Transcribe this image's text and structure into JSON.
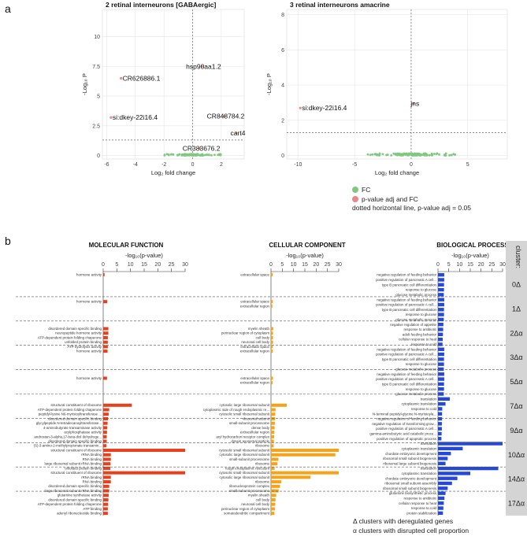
{
  "panel_a": {
    "letter": "a",
    "legend": {
      "fc": {
        "label": "FC",
        "color": "#7fc97f"
      },
      "pval": {
        "label": "p-value adj and FC",
        "color": "#e8888a"
      },
      "dotted": "dotted horizontal line, p-value adj = 0.05"
    },
    "xlabel": "Log₂ fold change",
    "ylabel": "-Log₁₀ P"
  },
  "panel_b": {
    "letter": "b",
    "footnote1": "Δ clusters with deregulated genes",
    "footnote2": "α clusters with disrupted cell proportion",
    "cluster_header": "cluster:",
    "axis_label": "-log₁₀(p-value)"
  },
  "chart_data": [
    {
      "type": "scatter",
      "title": "2 retinal interneurons [GABAergic]",
      "xlabel": "Log₂ fold change",
      "ylabel": "-Log₁₀ P",
      "xlim": [
        -6.3,
        3.6
      ],
      "ylim": [
        -0.3,
        12.3
      ],
      "xticks": [
        -6,
        -4,
        -2,
        0,
        2
      ],
      "yticks": [
        0,
        2.5,
        5,
        7.5,
        10
      ],
      "threshold": 1.3,
      "labeled": [
        {
          "label": "CR626886.1",
          "x": -5.0,
          "y": 6.5
        },
        {
          "label": "hsp90aa1.2",
          "x": 0.65,
          "y": 7.5
        },
        {
          "label": "si:dkey-22i16.4",
          "x": -5.7,
          "y": 3.2
        },
        {
          "label": "CR848784.2",
          "x": 2.2,
          "y": 3.3
        },
        {
          "label": "cart4",
          "x": 3.05,
          "y": 1.9
        },
        {
          "label": "CR383676.2",
          "x": 0.5,
          "y": 0.6
        }
      ]
    },
    {
      "type": "scatter",
      "title": "3 retinal interneurons amacrine",
      "xlabel": "Log₂ fold change",
      "ylabel": "-Log₁₀ P",
      "xlim": [
        -11,
        8.5
      ],
      "ylim": [
        -0.2,
        8.3
      ],
      "xticks": [
        -10,
        -5,
        0,
        5
      ],
      "yticks": [
        0,
        2,
        4,
        6,
        8
      ],
      "threshold": 1.3,
      "labeled": [
        {
          "label": "jns",
          "x": 0.2,
          "y": 2.95
        },
        {
          "label": "si:dkey-22i16.4",
          "x": -9.8,
          "y": 2.7
        }
      ]
    },
    {
      "type": "bar",
      "title": "MOLECULAR FUNCTION",
      "color": "#e8401c",
      "xlabel": "-log₁₀(p-value)",
      "xlim": [
        0,
        30
      ],
      "xticks": [
        0,
        5,
        10,
        15,
        20,
        25,
        30
      ],
      "categories": [
        "hormone activity",
        "",
        "",
        "",
        "",
        "",
        "hormone activity",
        "",
        "",
        "",
        "",
        "",
        "disordered domain specific binding",
        "neuropeptide hormone activity",
        "ATP-dependent protein folding chaperone",
        "unfolded protein binding",
        "ATP hydrolysis activity",
        "hormone activity",
        "",
        "",
        "",
        "",
        "",
        "hormone activity",
        "",
        "",
        "",
        "",
        "",
        "structural constituent of ribosome",
        "ATP-dependent protein folding chaperone",
        "peptidyl-lysine N6-myristoyltransferase ...",
        "disordered domain specific binding",
        "glycylpeptide N-tetradecanoyltransferase...",
        "4-aminobutyrate transaminase activity",
        "acylphosphatase activity",
        "androstan-3-alpha,17-beta-diol dehydroge...",
        "disordered domain specific binding",
        "(S)-3-amino-2-methylpropionate transamin...",
        "structural constituent of ribosome",
        "rRNA binding",
        "RNA binding",
        "large ribosomal subunit rRNA binding",
        "unfolded protein binding",
        "structural constituent of ribosome",
        "rRNA binding",
        "RNA binding",
        "disordered domain specific binding",
        "large ribosomal subunit rRNA binding",
        "glutamine synthetase activity",
        "disordered domain specific binding",
        "ATP-dependent protein folding chaperone",
        "ATP binding",
        "adenyl ribonucleotide binding"
      ],
      "values": [
        0.5,
        0,
        0,
        0,
        0,
        0,
        1.5,
        0,
        0,
        0,
        0,
        0,
        1.9,
        1.9,
        1.7,
        1.7,
        1.7,
        1.6,
        0,
        0,
        0,
        0,
        0,
        1.4,
        0,
        0,
        0,
        0,
        0,
        10.5,
        2.2,
        2.0,
        1.8,
        1.6,
        1.5,
        1.4,
        1.3,
        1.3,
        1.2,
        30,
        2.8,
        2.8,
        2.7,
        2.6,
        30,
        2.8,
        2.8,
        2.2,
        2.2,
        2.0,
        1.9,
        1.8,
        1.7,
        1.7
      ]
    },
    {
      "type": "bar",
      "title": "CELLULAR COMPONENT",
      "color": "#f5a31a",
      "xlabel": "-log₁₀(p-value)",
      "xlim": [
        0,
        30
      ],
      "xticks": [
        0,
        5,
        10,
        15,
        20,
        25,
        30
      ],
      "categories": [
        "extracellular space",
        "",
        "",
        "",
        "",
        "",
        "extracellular space",
        "extracellular region",
        "",
        "",
        "",
        "",
        "myelin sheath",
        "perinuclear region of cytoplasm",
        "cell body",
        "neuronal cell body",
        "extracellular space",
        "extracellular region",
        "",
        "",
        "",
        "",
        "",
        "extracellular space",
        "extracellular region",
        "",
        "",
        "",
        "",
        "cytosolic large ribosomal subunit",
        "cytoplasmic side of rough endoplasmic re...",
        "cytosolic small ribosomal subunit",
        "ribosomal subunit",
        "small-subunit processome",
        "dense body",
        "extracellular region",
        "aryl hydrocarbon receptor complex",
        "dynein axonemal particle",
        "ribosome",
        "cytosolic small ribosomal subunit",
        "cytosolic large ribosomal subunit",
        "small-subunit processome",
        "ribosome",
        "rough endoplasmic reticulum",
        "cytosolic small ribosomal subunit",
        "cytosolic large ribosomal subunit",
        "ribosome",
        "ribonucleoprotein complex",
        "small-subunit processome",
        "myelin sheath",
        "cell body",
        "neuronal cell body",
        "perinuclear region of cytoplasm",
        "somatodendritic compartment"
      ],
      "values": [
        0.8,
        0,
        0,
        0,
        0,
        0,
        0.8,
        0.6,
        0,
        0,
        0,
        0,
        1.0,
        0.9,
        0.9,
        0.9,
        0.8,
        0.8,
        0,
        0,
        0,
        0,
        0,
        0.9,
        0.7,
        0,
        0,
        0,
        0,
        7.0,
        2.0,
        1.9,
        1.8,
        1.7,
        1.6,
        1.5,
        1.4,
        1.3,
        1.2,
        30,
        28.5,
        3.3,
        2.9,
        1.6,
        30,
        17.5,
        4.5,
        4.0,
        3.4,
        2.3,
        2.0,
        1.9,
        1.7,
        1.5
      ]
    },
    {
      "type": "bar",
      "title": "BIOLOGICAL PROCESS",
      "color": "#2548d6",
      "xlabel": "-log₁₀(p-value)",
      "xlim": [
        0,
        30
      ],
      "xticks": [
        0,
        5,
        10,
        15,
        20,
        25,
        30
      ],
      "categories": [
        "negative regulation of feeding behavior",
        "positive regulation of pancreatic A cell...",
        "type B pancreatic cell differentiation",
        "response to glucose",
        "glucose metabolic process",
        "negative regulation of feeding behavior",
        "positive regulation of pancreatic A cell...",
        "type B pancreatic cell differentiation",
        "response to glucose",
        "glucose metabolic process",
        "negative regulation of appetite",
        "response to antibiotic",
        "adult feeding behavior",
        "cellular response to heat",
        "response to cold",
        "negative regulation of feeding behavior",
        "positive regulation of pancreatic A cell...",
        "type B pancreatic cell differentiation",
        "response to glucose",
        "glucose metabolic process",
        "negative regulation of feeding behavior",
        "positive regulation of pancreatic A cell...",
        "type B pancreatic cell differentiation",
        "response to glucose",
        "glucose metabolic process",
        "translation",
        "cytoplasmic translation",
        "response to cold",
        "N-terminal peptidyl-glycine N-myristoyla...",
        "negative regulation of feeding behavior",
        "negative regulation of transforming grow...",
        "positive regulation of pancreatic A cell...",
        "gamma-aminobutyric acid catabolic proce...",
        "positive regulation of apoptotic process",
        "translation",
        "cytoplasmic translation",
        "chordate embryonic development",
        "ribosomal small subunit biogenesis",
        "ribosomal large subunit biogenesis",
        "translation",
        "cytoplasmic translation",
        "chordate embryonic development",
        "ribosomal small subunit assembly",
        "ribosomal small subunit biogenesis",
        "glutamine biosynthetic process",
        "response to antibiotic",
        "cellular response to heat",
        "response to cold",
        "protein stabilization"
      ],
      "values": [
        2.9,
        2.9,
        2.8,
        2.8,
        2.7,
        2.9,
        2.9,
        2.8,
        2.8,
        2.7,
        2.5,
        2.4,
        2.3,
        2.2,
        2.1,
        2.9,
        2.9,
        2.8,
        2.8,
        2.7,
        2.9,
        2.9,
        2.8,
        2.8,
        2.7,
        5.5,
        3.5,
        2.0,
        1.9,
        1.9,
        1.8,
        1.8,
        1.7,
        1.6,
        30,
        11.5,
        6.0,
        4.5,
        3.5,
        28,
        15,
        9,
        6.5,
        4.5,
        3.5,
        3.0,
        2.7,
        2.5,
        2.3
      ]
    },
    {
      "type": "table",
      "title": "cluster:",
      "clusters": [
        "0Δ",
        "1Δ",
        "2Δα",
        "3Δα",
        "5Δα",
        "7Δα",
        "9Δα",
        "10Δα",
        "14Δα",
        "17Δα"
      ]
    }
  ]
}
